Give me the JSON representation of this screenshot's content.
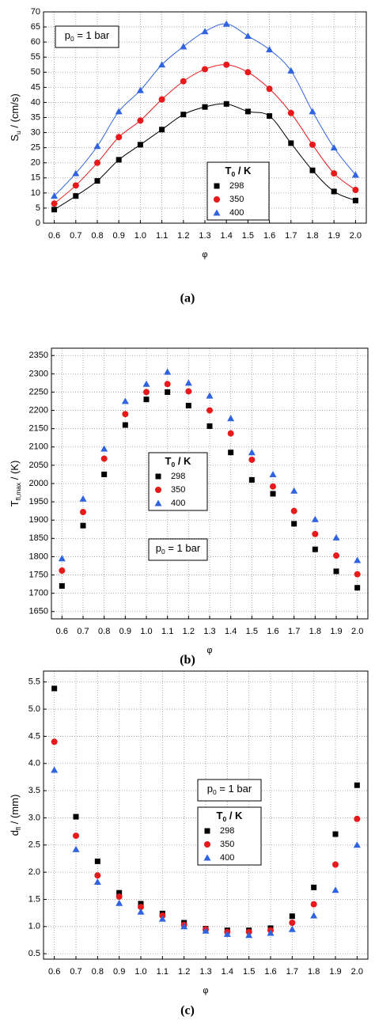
{
  "chart_data": [
    {
      "type": "scatter",
      "fit_curve": true,
      "grid": true,
      "caption": "(a)",
      "xlabel": "φ",
      "ylabel": {
        "text": "S",
        "sub": "u",
        "tail": " / (cm/s)"
      },
      "annotation": {
        "text": "p",
        "sub": "0",
        "tail": " = 1 bar"
      },
      "legend_title": {
        "text": "T",
        "sub": "0",
        "tail": " / K"
      },
      "x": [
        0.6,
        0.7,
        0.8,
        0.9,
        1.0,
        1.1,
        1.2,
        1.3,
        1.4,
        1.5,
        1.6,
        1.7,
        1.8,
        1.9,
        2.0
      ],
      "xlim": [
        0.55,
        2.05
      ],
      "xticks": [
        0.6,
        0.7,
        0.8,
        0.9,
        {
          "value": 1,
          "label": "1.0"
        },
        1.1,
        1.2,
        1.3,
        1.4,
        1.5,
        1.6,
        1.7,
        1.8,
        1.9,
        {
          "value": 2,
          "label": "2.0"
        }
      ],
      "ylim": [
        0,
        70
      ],
      "yticks": [
        0,
        5,
        10,
        15,
        20,
        25,
        30,
        35,
        40,
        45,
        50,
        55,
        60,
        65,
        70
      ],
      "series": [
        {
          "name": "298",
          "color": "#000000",
          "marker": "square",
          "values": [
            4.5,
            9,
            14,
            21,
            26,
            31,
            36,
            38.5,
            39.5,
            37,
            35.5,
            26.5,
            17.5,
            10.5,
            7.5
          ]
        },
        {
          "name": "350",
          "color": "#e8191b",
          "marker": "circle",
          "values": [
            6.5,
            12.5,
            20,
            28.5,
            34,
            41,
            47,
            51,
            52.5,
            50,
            44.5,
            36.5,
            26,
            16.5,
            11
          ]
        },
        {
          "name": "400",
          "color": "#2f63e0",
          "marker": "triangle",
          "values": [
            9,
            16.5,
            25.5,
            37,
            44,
            52.5,
            58.5,
            63.5,
            66,
            62,
            57.5,
            50.5,
            37,
            25,
            16
          ]
        }
      ]
    },
    {
      "type": "scatter",
      "fit_curve": false,
      "grid": true,
      "caption": "(b)",
      "xlabel": "φ",
      "ylabel": {
        "text": "T",
        "sub": "fl,max",
        "tail": " / (K)"
      },
      "annotation": {
        "text": "p",
        "sub": "0",
        "tail": " = 1 bar"
      },
      "legend_title": {
        "text": "T",
        "sub": "0",
        "tail": " / K"
      },
      "x": [
        0.6,
        0.7,
        0.8,
        0.9,
        1.0,
        1.1,
        1.2,
        1.3,
        1.4,
        1.5,
        1.6,
        1.7,
        1.8,
        1.9,
        2.0
      ],
      "xlim": [
        0.55,
        2.05
      ],
      "xticks": [
        0.6,
        0.7,
        0.8,
        0.9,
        {
          "value": 1,
          "label": "1.0"
        },
        1.1,
        1.2,
        1.3,
        1.4,
        1.5,
        1.6,
        1.7,
        1.8,
        1.9,
        {
          "value": 2,
          "label": "2.0"
        }
      ],
      "ylim": [
        1630,
        2370
      ],
      "yticks": [
        1650,
        1700,
        1750,
        1800,
        1850,
        1900,
        1950,
        2000,
        2050,
        2100,
        2150,
        2200,
        2250,
        2300,
        2350
      ],
      "series": [
        {
          "name": "298",
          "color": "#000000",
          "marker": "square",
          "values": [
            1720,
            1885,
            2025,
            2160,
            2230,
            2250,
            2213,
            2157,
            2085,
            2010,
            1972,
            1890,
            1820,
            1760,
            1715
          ]
        },
        {
          "name": "350",
          "color": "#e8191b",
          "marker": "circle",
          "values": [
            1762,
            1922,
            2068,
            2190,
            2250,
            2272,
            2252,
            2200,
            2137,
            2065,
            1992,
            1925,
            1862,
            1803,
            1752
          ]
        },
        {
          "name": "400",
          "color": "#2f63e0",
          "marker": "triangle",
          "values": [
            1795,
            1958,
            2095,
            2225,
            2272,
            2305,
            2275,
            2240,
            2178,
            2085,
            2025,
            1980,
            1902,
            1852,
            1790
          ]
        }
      ]
    },
    {
      "type": "scatter",
      "fit_curve": false,
      "grid": true,
      "caption": "(c)",
      "xlabel": "φ",
      "ylabel": {
        "text": "d",
        "sub": "fl",
        "tail": " / (mm)"
      },
      "annotation": {
        "text": "p",
        "sub": "0",
        "tail": " = 1 bar"
      },
      "legend_title": {
        "text": "T",
        "sub": "0",
        "tail": " / K"
      },
      "x": [
        0.6,
        0.7,
        0.8,
        0.9,
        1.0,
        1.1,
        1.2,
        1.3,
        1.4,
        1.5,
        1.6,
        1.7,
        1.8,
        1.9,
        2.0
      ],
      "xlim": [
        0.55,
        2.05
      ],
      "xticks": [
        0.6,
        0.7,
        0.8,
        0.9,
        {
          "value": 1,
          "label": "1.0"
        },
        1.1,
        1.2,
        1.3,
        1.4,
        1.5,
        1.6,
        1.7,
        1.8,
        1.9,
        {
          "value": 2,
          "label": "2.0"
        }
      ],
      "ylim": [
        0.4,
        5.7
      ],
      "yticks": [
        0.5,
        {
          "value": 1,
          "label": "1.0"
        },
        1.5,
        {
          "value": 2,
          "label": "2.0"
        },
        2.5,
        {
          "value": 3,
          "label": "3.0"
        },
        3.5,
        {
          "value": 4,
          "label": "4.0"
        },
        4.5,
        {
          "value": 5,
          "label": "5.0"
        },
        5.5
      ],
      "series": [
        {
          "name": "298",
          "color": "#000000",
          "marker": "square",
          "values": [
            5.38,
            3.02,
            2.2,
            1.62,
            1.42,
            1.24,
            1.07,
            0.96,
            0.93,
            0.93,
            0.97,
            1.19,
            1.72,
            2.7,
            3.6
          ]
        },
        {
          "name": "350",
          "color": "#e8191b",
          "marker": "circle",
          "values": [
            4.4,
            2.67,
            1.94,
            1.55,
            1.36,
            1.2,
            1.03,
            0.95,
            0.9,
            0.9,
            0.93,
            1.07,
            1.41,
            2.14,
            2.98
          ]
        },
        {
          "name": "400",
          "color": "#2f63e0",
          "marker": "triangle",
          "values": [
            3.88,
            2.42,
            1.82,
            1.43,
            1.27,
            1.14,
            1.0,
            0.92,
            0.86,
            0.84,
            0.88,
            0.95,
            1.2,
            1.67,
            2.5
          ]
        }
      ]
    }
  ]
}
